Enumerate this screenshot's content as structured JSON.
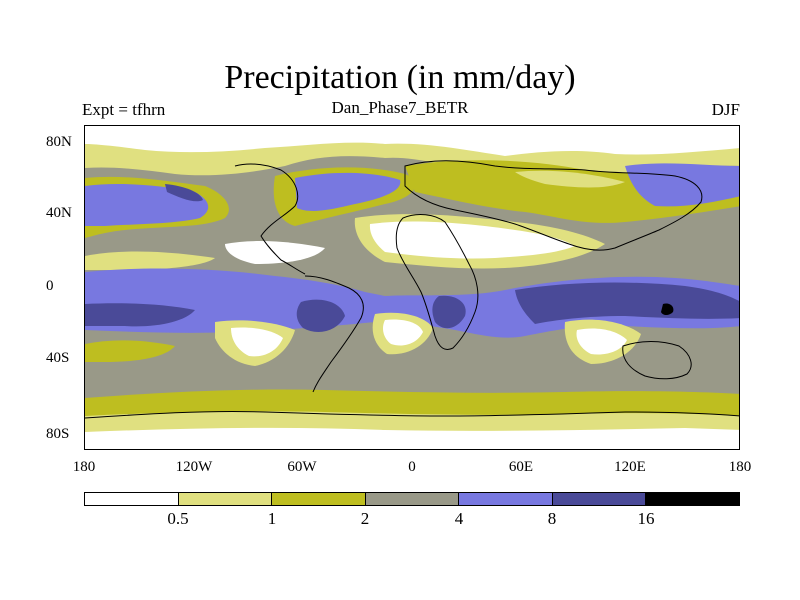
{
  "title": "Precipitation (in mm/day)",
  "subtitle": "Dan_Phase7_BETR",
  "left_string": "Expt = tfhrn",
  "right_string": "DJF",
  "lat_labels": [
    "80N",
    "40N",
    "0",
    "40S",
    "80S"
  ],
  "lon_labels": [
    "180",
    "120W",
    "60W",
    "0",
    "60E",
    "120E",
    "180"
  ],
  "colorbar": {
    "colors": [
      "#ffffff",
      "#e0e080",
      "#bebe20",
      "#999988",
      "#7878e0",
      "#4a4a98",
      "#000000"
    ],
    "labels": [
      "0.5",
      "1",
      "2",
      "4",
      "8",
      "16"
    ]
  },
  "colors": {
    "land_outline": "#000000",
    "background": "#ffffff"
  }
}
